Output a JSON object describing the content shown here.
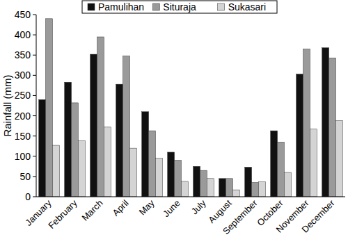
{
  "chart_data": {
    "type": "bar",
    "y_label": "Rainfall (mm)",
    "categories": [
      "January",
      "February",
      "March",
      "April",
      "May",
      "June",
      "July",
      "August",
      "September",
      "October",
      "November",
      "December"
    ],
    "series": [
      {
        "name": "Pamulihan",
        "color": "#111111",
        "values": [
          240,
          283,
          352,
          278,
          210,
          110,
          75,
          45,
          73,
          163,
          303,
          368
        ]
      },
      {
        "name": "Situraja",
        "color": "#9a9a9a",
        "values": [
          440,
          232,
          395,
          348,
          163,
          90,
          65,
          45,
          35,
          135,
          365,
          343
        ]
      },
      {
        "name": "Sukasari",
        "color": "#d4d4d4",
        "values": [
          127,
          138,
          172,
          120,
          95,
          38,
          45,
          17,
          37,
          60,
          167,
          188
        ]
      }
    ],
    "ylim": [
      0,
      450
    ],
    "yticks": [
      0,
      50,
      100,
      150,
      200,
      250,
      300,
      350,
      400,
      450
    ],
    "grid": false,
    "legend": "top"
  }
}
